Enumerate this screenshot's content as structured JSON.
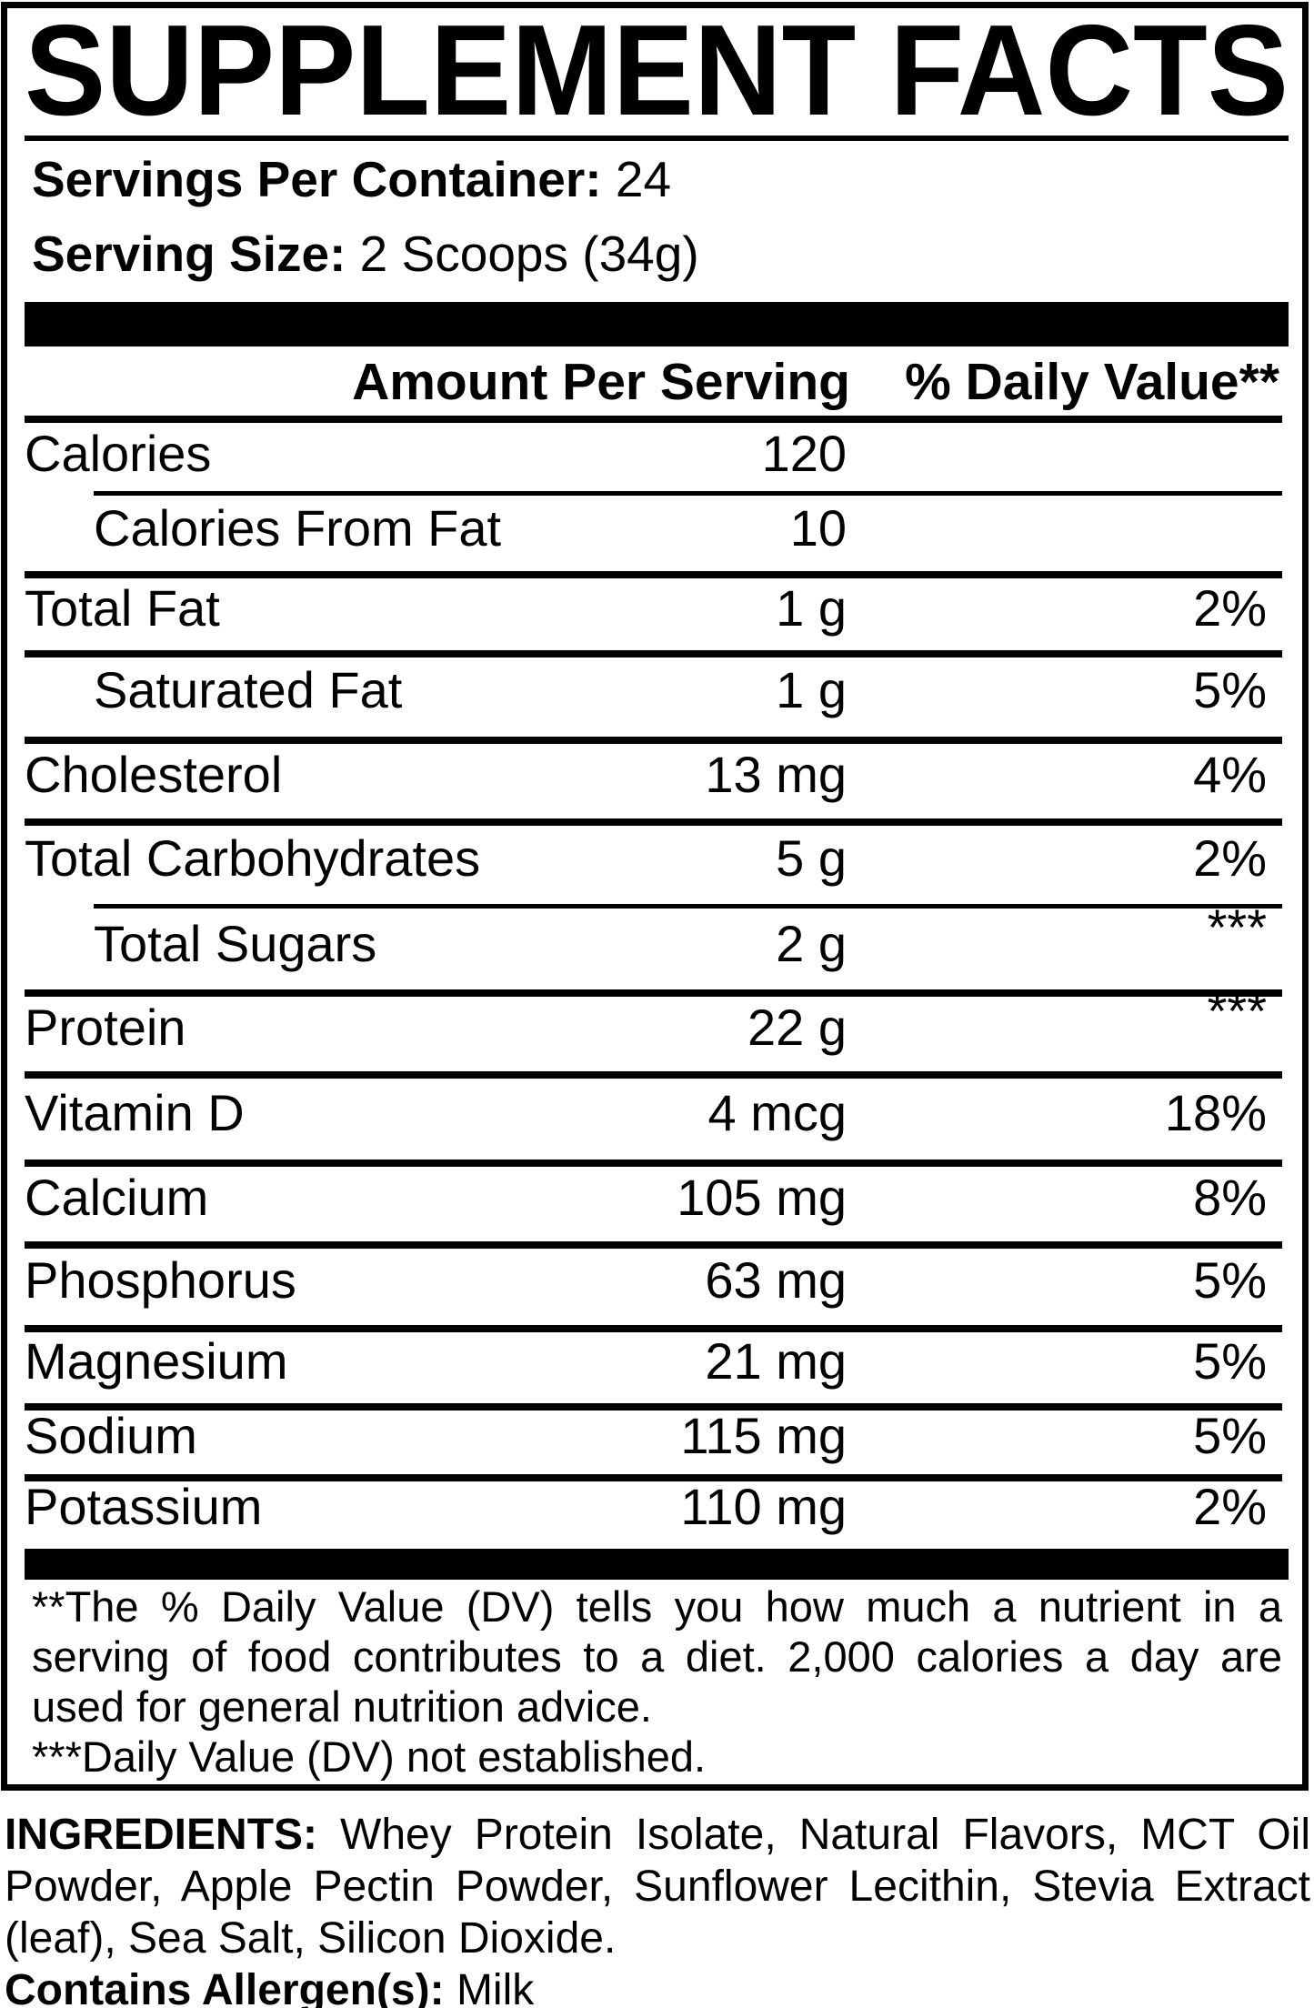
{
  "colors": {
    "ink": "#000000",
    "paper": "#ffffff"
  },
  "title": "SUPPLEMENT FACTS",
  "serving_info": {
    "servings_label": "Servings Per Container:",
    "servings_value": "24",
    "size_label": "Serving Size:",
    "size_value": "2 Scoops (34g)"
  },
  "table": {
    "amount_header": "Amount Per Serving",
    "dv_header": "% Daily Value**",
    "rows": [
      {
        "name": "Calories",
        "amount": "120",
        "dv": "",
        "indent": false,
        "dv_raised": false
      },
      {
        "name": "Calories From Fat",
        "amount": "10",
        "dv": "",
        "indent": true,
        "dv_raised": false
      },
      {
        "name": "Total Fat",
        "amount": "1 g",
        "dv": "2%",
        "indent": false,
        "dv_raised": false
      },
      {
        "name": "Saturated Fat",
        "amount": "1 g",
        "dv": "5%",
        "indent": true,
        "dv_raised": false
      },
      {
        "name": "Cholesterol",
        "amount": "13 mg",
        "dv": "4%",
        "indent": false,
        "dv_raised": false
      },
      {
        "name": "Total Carbohydrates",
        "amount": "5 g",
        "dv": "2%",
        "indent": false,
        "dv_raised": false
      },
      {
        "name": "Total Sugars",
        "amount": "2 g",
        "dv": "***",
        "indent": true,
        "dv_raised": true
      },
      {
        "name": "Protein",
        "amount": "22 g",
        "dv": "***",
        "indent": false,
        "dv_raised": true
      },
      {
        "name": "Vitamin D",
        "amount": "4 mcg",
        "dv": "18%",
        "indent": false,
        "dv_raised": false
      },
      {
        "name": "Calcium",
        "amount": "105 mg",
        "dv": "8%",
        "indent": false,
        "dv_raised": false
      },
      {
        "name": "Phosphorus",
        "amount": "63 mg",
        "dv": "5%",
        "indent": false,
        "dv_raised": false
      },
      {
        "name": "Magnesium",
        "amount": "21 mg",
        "dv": "5%",
        "indent": false,
        "dv_raised": false
      },
      {
        "name": "Sodium",
        "amount": "115 mg",
        "dv": "5%",
        "indent": false,
        "dv_raised": false
      },
      {
        "name": "Potassium",
        "amount": "110 mg",
        "dv": "2%",
        "indent": false,
        "dv_raised": false
      }
    ]
  },
  "footnotes": {
    "line1": "**The % Daily Value (DV) tells you how much a nutrient in a",
    "line2": "serving of food contributes to a diet. 2,000 calories a day are",
    "line3": "used for general nutrition advice.",
    "line4": "***Daily Value (DV) not established."
  },
  "ingredients": {
    "label": "INGREDIENTS:",
    "line1_rest": " Whey Protein Isolate, Natural Flavors, MCT Oil",
    "line2": "Powder, Apple Pectin Powder, Sunflower Lecithin, Stevia Extract",
    "line3": "(leaf), Sea Salt, Silicon Dioxide.",
    "allergen_label": "Contains Allergen(s):",
    "allergen_value": "Milk"
  }
}
